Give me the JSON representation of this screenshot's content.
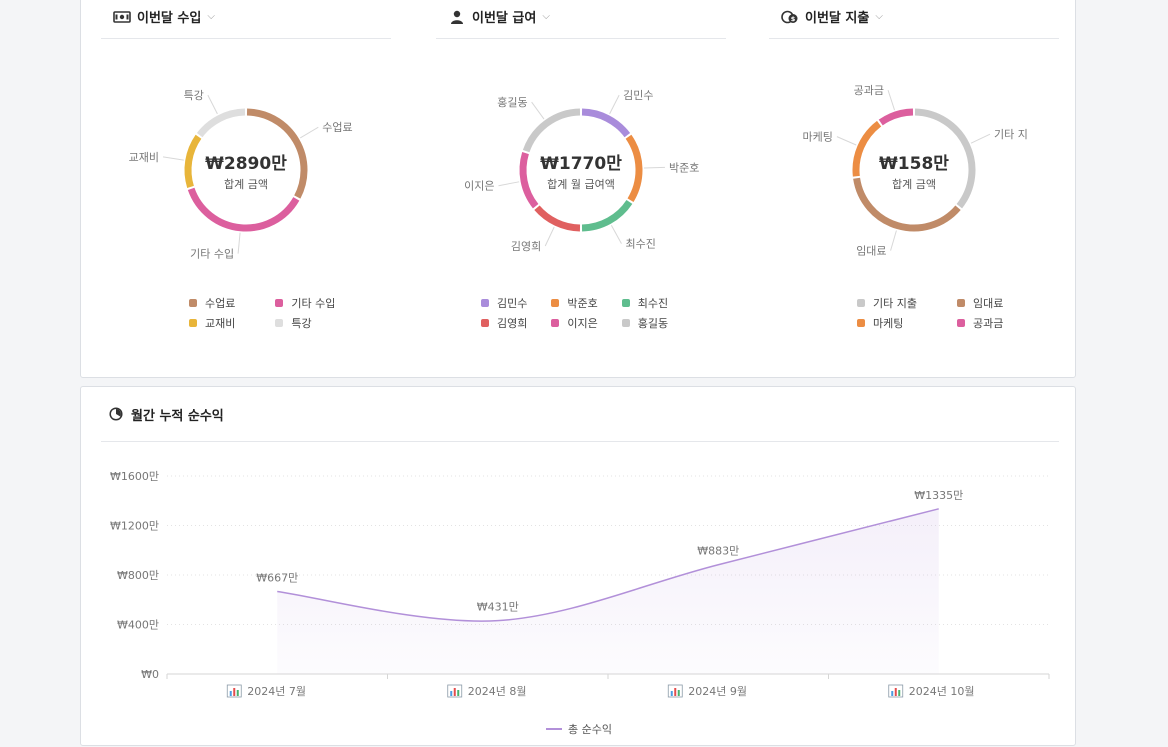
{
  "cards": [
    {
      "title": "이번달 수입",
      "icon": "money-icon",
      "total": "₩2890만",
      "total_label": "합계 금액",
      "segments": [
        {
          "name": "수업료",
          "value": 33,
          "color": "#c08b68"
        },
        {
          "name": "기타 수입",
          "value": 37,
          "color": "#dc5f9e"
        },
        {
          "name": "교재비",
          "value": 15,
          "color": "#e8b53a"
        },
        {
          "name": "특강",
          "value": 15,
          "color": "#dedede"
        }
      ],
      "legend_order": [
        "수업료",
        "기타 수입",
        "교재비",
        "특강"
      ]
    },
    {
      "title": "이번달 급여",
      "icon": "person-icon",
      "total": "₩1770만",
      "total_label": "합계 월 급여액",
      "segments": [
        {
          "name": "김민수",
          "value": 15,
          "color": "#a98cdb"
        },
        {
          "name": "박준호",
          "value": 19,
          "color": "#ec8d43"
        },
        {
          "name": "최수진",
          "value": 16,
          "color": "#5fbd8e"
        },
        {
          "name": "김영희",
          "value": 14,
          "color": "#e06060"
        },
        {
          "name": "이지은",
          "value": 16,
          "color": "#dc5f9e"
        },
        {
          "name": "홍길동",
          "value": 20,
          "color": "#c9c9c9"
        }
      ],
      "legend_order": [
        "김민수",
        "박준호",
        "최수진",
        "김영희",
        "이지은",
        "홍길동"
      ]
    },
    {
      "title": "이번달 지출",
      "icon": "coins-icon",
      "total": "₩158만",
      "total_label": "합계 금액",
      "segments": [
        {
          "name": "기타 지출",
          "value": 36,
          "color": "#c9c9c9"
        },
        {
          "name": "임대료",
          "value": 37,
          "color": "#c08b68"
        },
        {
          "name": "마케팅",
          "value": 17,
          "color": "#ec8d43"
        },
        {
          "name": "공과금",
          "value": 10,
          "color": "#dc5f9e"
        }
      ],
      "segment_labels": [
        "기타 지",
        "임대료",
        "마케팅",
        "공과금"
      ],
      "legend_order": [
        "기타 지출",
        "임대료",
        "마케팅",
        "공과금"
      ]
    }
  ],
  "trend": {
    "title": "월간 누적 순수익",
    "icon": "clock-chart-icon",
    "legend_label": "총 순수익"
  },
  "chart_data": {
    "type": "area",
    "title": "월간 누적 순수익",
    "categories": [
      "2024년 7월",
      "2024년 8월",
      "2024년 9월",
      "2024년 10월"
    ],
    "series": [
      {
        "name": "총 순수익",
        "values": [
          667,
          431,
          883,
          1335
        ],
        "labels": [
          "₩667만",
          "₩431만",
          "₩883만",
          "₩1335만"
        ],
        "color": "#b290d9"
      }
    ],
    "y_ticks": [
      "₩0",
      "₩400만",
      "₩800만",
      "₩1200만",
      "₩1600만"
    ],
    "ylim": [
      0,
      1600
    ],
    "grid": true,
    "legend": "bottom"
  }
}
